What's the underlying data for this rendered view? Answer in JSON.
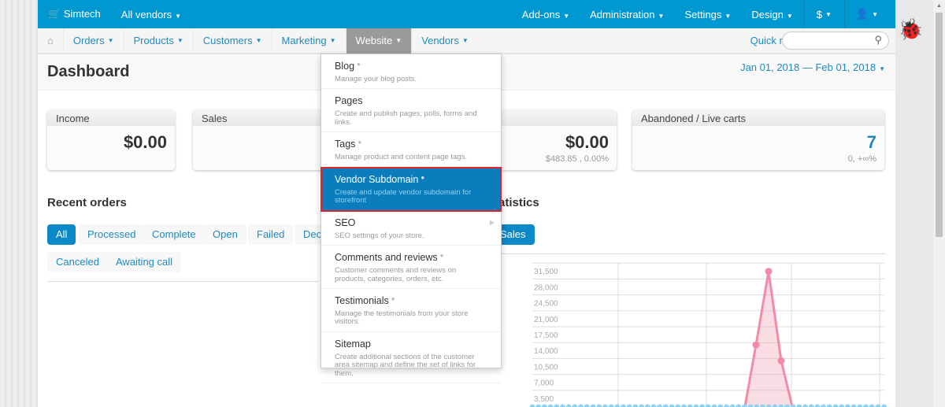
{
  "topbar": {
    "brand": "Simtech",
    "vendors": "All vendors",
    "items": [
      "Add-ons",
      "Administration",
      "Settings",
      "Design",
      "$"
    ]
  },
  "nav": {
    "items": [
      "Orders",
      "Products",
      "Customers",
      "Marketing",
      "Website",
      "Vendors"
    ],
    "active": "Website",
    "quick_menu": "Quick menu",
    "search_placeholder": ""
  },
  "page": {
    "title": "Dashboard",
    "date_range": "Jan 01, 2018 — Feb 01, 2018"
  },
  "cards": [
    {
      "title": "Income",
      "value": "$0.00"
    },
    {
      "title": "Sales",
      "value": ""
    },
    {
      "title": "",
      "value": "$0.00",
      "sub": "$483.85 , 0.00%"
    },
    {
      "title": "Abandoned / Live carts",
      "value": "7",
      "sub": "0, +∞%"
    }
  ],
  "recent_orders": {
    "title": "Recent orders",
    "filters": [
      "All",
      "Processed",
      "Complete",
      "Open",
      "Failed",
      "Dec",
      "Canceled",
      "Awaiting call"
    ],
    "active": "All"
  },
  "statistics": {
    "title": "atistics",
    "tab": "Sales"
  },
  "menu": [
    {
      "label": "Blog",
      "desc": "Manage your blog posts."
    },
    {
      "label": "Pages",
      "desc": "Create and publish pages, polls, forms and links."
    },
    {
      "label": "Tags",
      "desc": "Manage product and content page tags."
    },
    {
      "label": "Vendor Subdomain",
      "desc": "Create and update vendor subdomain for storefront"
    },
    {
      "label": "SEO",
      "desc": "SEO settings of your store."
    },
    {
      "label": "Comments and reviews",
      "desc": "Customer comments and reviews on products, categories, orders, etc."
    },
    {
      "label": "Testimonials",
      "desc": "Manage the testimonials from your store visitors."
    },
    {
      "label": "Sitemap",
      "desc": "Create additional sections of the customer area sitemap and define the set of links for them."
    }
  ],
  "chart_data": {
    "type": "area",
    "y_ticks": [
      "3,500",
      "7,000",
      "10,500",
      "14,000",
      "17,500",
      "21,000",
      "24,500",
      "28,000",
      "31,500"
    ],
    "ylim": [
      0,
      31500
    ],
    "grid": true,
    "series": [
      {
        "values": [
          0,
          13500,
          29700,
          10000,
          0
        ],
        "color": "#f08ca6"
      }
    ]
  }
}
